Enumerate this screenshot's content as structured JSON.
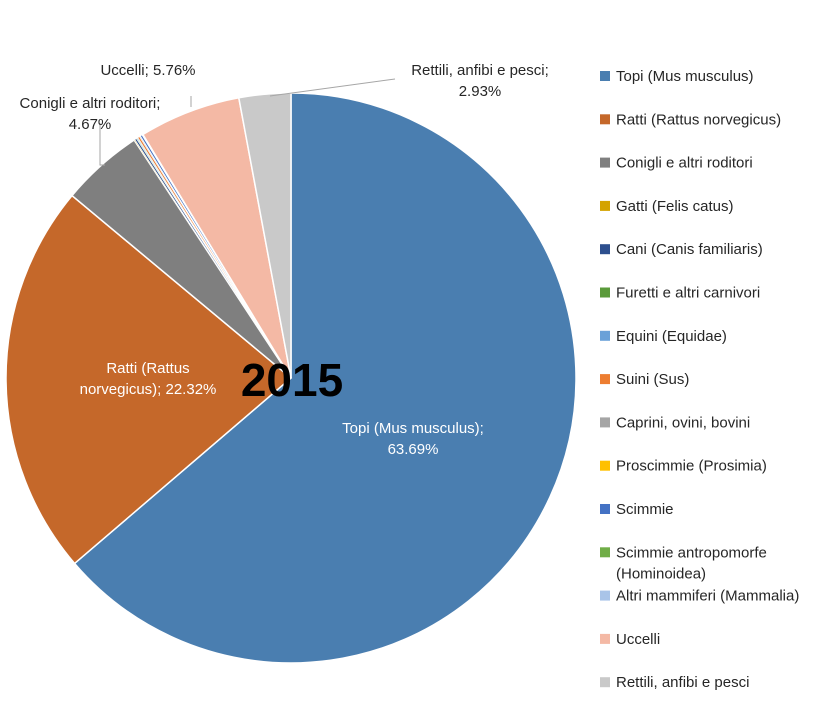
{
  "chart_data": {
    "type": "pie",
    "title": "2015",
    "legend_position": "right",
    "slices": [
      {
        "name": "Topi (Mus musculus)",
        "value": 63.69,
        "color": "#4a7eb0",
        "label": "Topi (Mus musculus);\n63.69%"
      },
      {
        "name": "Ratti (Rattus norvegicus)",
        "value": 22.32,
        "color": "#c5682a",
        "label": "Ratti (Rattus\nnorvegicus); 22.32%"
      },
      {
        "name": "Conigli e altri roditori",
        "value": 4.67,
        "color": "#7f7f7f",
        "label": "Conigli e altri roditori;\n4.67%"
      },
      {
        "name": "Gatti (Felis catus)",
        "value": 0.05,
        "color": "#d4a300",
        "label": ""
      },
      {
        "name": "Cani (Canis familiaris)",
        "value": 0.1,
        "color": "#2d4f8e",
        "label": ""
      },
      {
        "name": "Furetti e altri carnivori",
        "value": 0.05,
        "color": "#5a9a3a",
        "label": ""
      },
      {
        "name": "Equini (Equidae)",
        "value": 0.05,
        "color": "#6aa1d8",
        "label": ""
      },
      {
        "name": "Suini (Sus)",
        "value": 0.1,
        "color": "#ed7d31",
        "label": ""
      },
      {
        "name": "Caprini, ovini, bovini",
        "value": 0.05,
        "color": "#a5a5a5",
        "label": ""
      },
      {
        "name": "Proscimmie (Prosimia)",
        "value": 0.02,
        "color": "#ffc000",
        "label": ""
      },
      {
        "name": "Scimmie",
        "value": 0.1,
        "color": "#4472c4",
        "label": ""
      },
      {
        "name": "Scimmie antropomorfe\n(Hominoidea)",
        "value": 0.01,
        "color": "#70ad47",
        "label": ""
      },
      {
        "name": "Altri mammiferi (Mammalia)",
        "value": 0.05,
        "color": "#a9c4e8",
        "label": ""
      },
      {
        "name": "Uccelli",
        "value": 5.76,
        "color": "#f4b9a5",
        "label": "Uccelli; 5.76%"
      },
      {
        "name": "Rettili, anfibi e pesci",
        "value": 2.93,
        "color": "#c9c9c9",
        "label": "Rettili, anfibi e pesci;\n2.93%"
      }
    ]
  }
}
